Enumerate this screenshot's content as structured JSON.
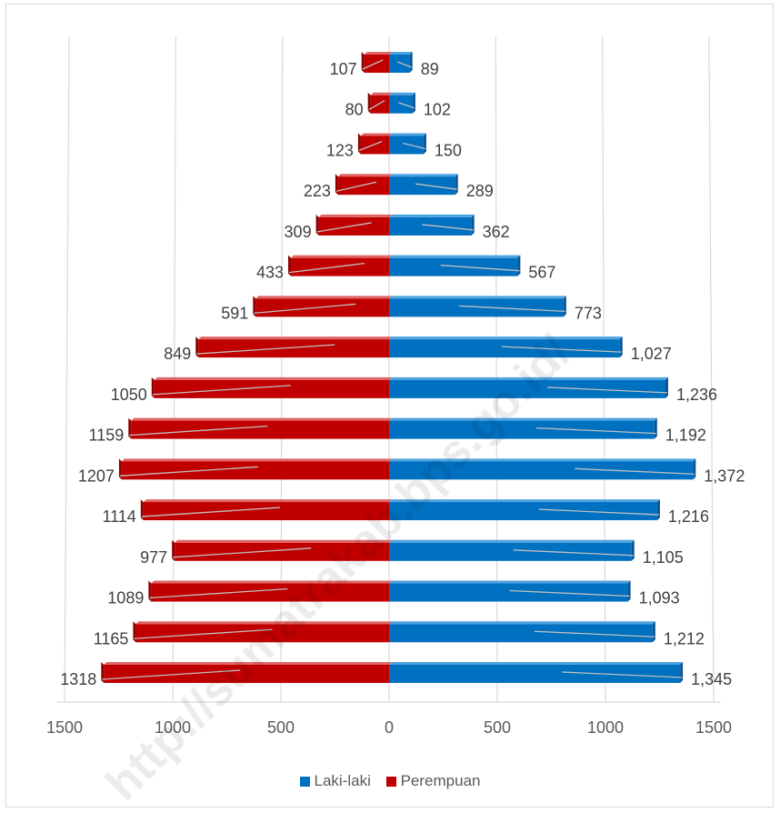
{
  "chart_data": {
    "type": "bar",
    "orientation": "horizontal-butterfly",
    "title": "",
    "series": [
      {
        "name": "Laki-laki",
        "color": "#0070c0",
        "side": "right",
        "values": [
          1345,
          1212,
          1093,
          1105,
          1216,
          1372,
          1192,
          1236,
          1027,
          773,
          567,
          362,
          289,
          150,
          102,
          89
        ],
        "labels": [
          "1,345",
          "1,212",
          "1,093",
          "1,105",
          "1,216",
          "1,372",
          "1,192",
          "1,236",
          "1,027",
          "773",
          "567",
          "362",
          "289",
          "150",
          "102",
          "89"
        ]
      },
      {
        "name": "Perempuan",
        "color": "#c00000",
        "side": "left",
        "values": [
          1318,
          1165,
          1089,
          977,
          1114,
          1207,
          1159,
          1050,
          849,
          591,
          433,
          309,
          223,
          123,
          80,
          107
        ],
        "labels": [
          "1318",
          "1165",
          "1089",
          "977",
          "1114",
          "1207",
          "1159",
          "1050",
          "849",
          "591",
          "433",
          "309",
          "223",
          "123",
          "80",
          "107"
        ]
      }
    ],
    "xlim": [
      -1500,
      1500
    ],
    "xticks": [
      -1500,
      -1000,
      -500,
      0,
      500,
      1000,
      1500
    ],
    "xtick_labels": [
      "1500",
      "1000",
      "500",
      "0",
      "500",
      "1000",
      "1500"
    ],
    "grid": true,
    "legend_position": "bottom"
  },
  "watermark": "http://sumatrakab.bps.go.id/"
}
